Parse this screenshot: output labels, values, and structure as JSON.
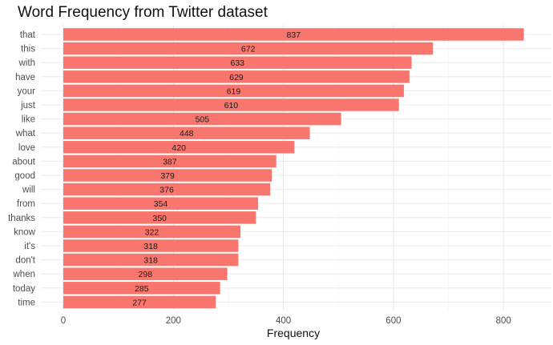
{
  "chart_data": {
    "type": "bar",
    "orientation": "horizontal",
    "title": "Word Frequency from Twitter dataset",
    "xlabel": "Frequency",
    "ylabel": "",
    "categories": [
      "that",
      "this",
      "with",
      "have",
      "your",
      "just",
      "like",
      "what",
      "love",
      "about",
      "good",
      "will",
      "from",
      "thanks",
      "know",
      "it's",
      "don't",
      "when",
      "today",
      "time"
    ],
    "values": [
      837,
      672,
      633,
      629,
      619,
      610,
      505,
      448,
      420,
      387,
      379,
      376,
      354,
      350,
      322,
      318,
      318,
      298,
      285,
      277
    ],
    "x_ticks": [
      0,
      200,
      400,
      600,
      800
    ],
    "xlim": [
      0,
      880
    ],
    "bar_color": "#F8766D",
    "grid": true,
    "legend": "none",
    "data_labels": true
  }
}
